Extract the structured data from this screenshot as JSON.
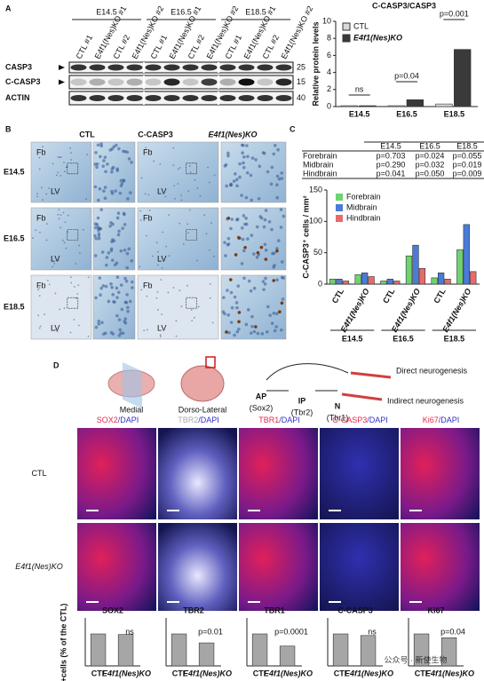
{
  "panels": {
    "a": {
      "letter": "A",
      "groups": [
        "E14.5",
        "E16.5",
        "E18.5"
      ],
      "lanes": [
        "CTL #1",
        "E4f1(Nes)KO #1",
        "CTL #2",
        "E4f1(Nes)KO #2",
        "CTL #1",
        "E4f1(Nes)KO #1",
        "CTL #2",
        "E4f1(Nes)KO #2",
        "CTL #1",
        "E4f1(Nes)KO #1",
        "CTL #2",
        "E4f1(Nes)KO #2"
      ],
      "rows": [
        "CASP3",
        "C-CASP3",
        "ACTIN"
      ],
      "markers": [
        "25",
        "15",
        "40"
      ]
    },
    "b": {
      "letter": "B",
      "columns": [
        "CTL",
        "C-CASP3",
        "E4f1(Nes)KO"
      ],
      "rows": [
        "E14.5",
        "E16.5",
        "E18.5"
      ],
      "tile_labels": [
        "Fb",
        "LV",
        "Fb",
        "LV",
        "Fb",
        "LV",
        "Fb",
        "LV",
        "Fb",
        "LV",
        "Fb",
        "LV"
      ]
    },
    "c": {
      "letter": "C"
    },
    "d": {
      "letter": "D",
      "schematic": {
        "medial": "Medial",
        "dorsolateral": "Dorso-Lateral",
        "direct": "Direct neurogenesis",
        "indirect": "Indirect neurogenesis",
        "ap": "AP",
        "ap_marker": "(Sox2)",
        "ip": "IP",
        "ip_marker": "(Tbr2)",
        "n": "N",
        "n_marker": "(Tbr1)"
      },
      "headers": [
        [
          {
            "text": "SOX2",
            "color": "#e8264a"
          },
          {
            "text": "/DAPI",
            "color": "#3030c8"
          }
        ],
        [
          {
            "text": "TBR2",
            "color": "#aaaaaa"
          },
          {
            "text": "/DAPI",
            "color": "#3030c8"
          }
        ],
        [
          {
            "text": "TBR1",
            "color": "#e8264a"
          },
          {
            "text": "/DAPI",
            "color": "#3030c8"
          }
        ],
        [
          {
            "text": "C-CASP3",
            "color": "#e8264a"
          },
          {
            "text": "/DAPI",
            "color": "#3030c8"
          }
        ],
        [
          {
            "text": "Ki67",
            "color": "#e8264a"
          },
          {
            "text": "/DAPI",
            "color": "#3030c8"
          }
        ]
      ],
      "rows": [
        "CTL",
        "E4f1(Nes)KO"
      ],
      "ylabel": "+cells (% of the CTL)"
    },
    "watermark": "公众号 · 新使生物"
  },
  "chart_data": [
    {
      "type": "bar",
      "title": "C-CASP3/CASP3",
      "ylabel": "Relative protein levels",
      "categories": [
        "E14.5",
        "E16.5",
        "E18.5"
      ],
      "series": [
        {
          "name": "CTL",
          "color": "#d9d9d9",
          "values": [
            0.1,
            0.1,
            0.3
          ]
        },
        {
          "name": "E4f1(Nes)KO",
          "color": "#3a3a3a",
          "values": [
            0.1,
            0.8,
            6.7
          ]
        }
      ],
      "annotations": [
        "ns",
        "p=0.04",
        "p=0.001"
      ],
      "ylim": [
        0,
        10
      ],
      "yticks": [
        0,
        2,
        4,
        6,
        8,
        10
      ],
      "legend": "top-left"
    },
    {
      "type": "bar",
      "ylabel": "C-CASP3⁺ cells / mm²",
      "categories": [
        "CTL",
        "E4f1(Nes)KO",
        "CTL",
        "E4f1(Nes)KO",
        "CTL",
        "E4f1(Nes)KO"
      ],
      "groups": [
        "E14.5",
        "E16.5",
        "E18.5"
      ],
      "series": [
        {
          "name": "Forebrain",
          "color": "#6fd36f",
          "values": [
            8,
            15,
            5,
            45,
            10,
            55
          ]
        },
        {
          "name": "Midbrain",
          "color": "#4a7bd8",
          "values": [
            8,
            18,
            8,
            62,
            18,
            95
          ]
        },
        {
          "name": "Hindbrain",
          "color": "#e86a6a",
          "values": [
            5,
            12,
            5,
            25,
            8,
            20
          ]
        }
      ],
      "table": {
        "columns": [
          "E14.5",
          "E16.5",
          "E18.5"
        ],
        "rows": [
          {
            "name": "Forebrain",
            "values": [
              "p=0.703",
              "p=0.024",
              "p=0.055"
            ]
          },
          {
            "name": "Midbrain",
            "values": [
              "p=0.290",
              "p=0.032",
              "p=0.019"
            ]
          },
          {
            "name": "Hindbrain",
            "values": [
              "p=0.041",
              "p=0.050",
              "p=0.009"
            ]
          }
        ]
      },
      "ylim": [
        0,
        150
      ],
      "yticks": [
        0,
        50,
        100,
        150
      ],
      "legend": "top"
    },
    {
      "type": "bar",
      "title": "SOX2",
      "categories": [
        "CTL",
        "E4f1(Nes)KO"
      ],
      "values": [
        100,
        98
      ],
      "color": "#a6a6a6",
      "ylim": [
        0,
        150
      ],
      "annotation": "ns"
    },
    {
      "type": "bar",
      "title": "TBR2",
      "categories": [
        "CTL",
        "E4f1(Nes)KO"
      ],
      "values": [
        100,
        72
      ],
      "color": "#a6a6a6",
      "ylim": [
        0,
        150
      ],
      "annotation": "p=0.01"
    },
    {
      "type": "bar",
      "title": "TBR1",
      "categories": [
        "CTL",
        "E4f1(Nes)KO"
      ],
      "values": [
        100,
        62
      ],
      "color": "#a6a6a6",
      "ylim": [
        0,
        150
      ],
      "annotation": "p=0.0001"
    },
    {
      "type": "bar",
      "title": "C-CASP3",
      "categories": [
        "CTL",
        "E4f1(Nes)KO"
      ],
      "values": [
        100,
        95
      ],
      "color": "#a6a6a6",
      "ylim": [
        0,
        150
      ],
      "annotation": "ns"
    },
    {
      "type": "bar",
      "title": "Ki67",
      "categories": [
        "CTL",
        "E4f1(Nes)KO"
      ],
      "values": [
        100,
        88
      ],
      "color": "#a6a6a6",
      "ylim": [
        0,
        150
      ],
      "annotation": "p=0.04"
    }
  ]
}
